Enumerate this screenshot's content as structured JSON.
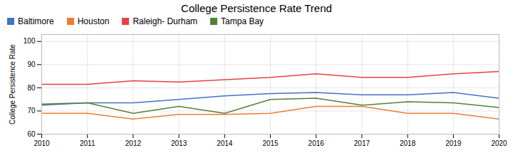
{
  "chart_data": {
    "type": "line",
    "title": "College Persistence Rate Trend",
    "ylabel": "College Persistence Rate",
    "x": [
      2010,
      2011,
      2012,
      2013,
      2014,
      2015,
      2016,
      2017,
      2018,
      2019,
      2020
    ],
    "series": [
      {
        "name": "Baltimore",
        "color": "#4472C4",
        "values": [
          72.5,
          73.5,
          73.5,
          75.0,
          76.5,
          77.5,
          78.0,
          77.0,
          77.0,
          78.0,
          75.5
        ]
      },
      {
        "name": "Houston",
        "color": "#ED7D31",
        "values": [
          69.0,
          69.0,
          66.5,
          68.5,
          68.5,
          69.0,
          72.0,
          72.0,
          69.0,
          69.0,
          66.5
        ]
      },
      {
        "name": "Raleigh- Durham",
        "color": "#E84040",
        "values": [
          81.5,
          81.5,
          83.0,
          82.5,
          83.5,
          84.5,
          86.0,
          84.5,
          84.5,
          86.0,
          87.0
        ]
      },
      {
        "name": "Tampa Bay",
        "color": "#548235",
        "values": [
          73.0,
          73.5,
          69.0,
          72.0,
          69.0,
          75.0,
          75.5,
          72.5,
          74.0,
          73.5,
          71.5
        ]
      }
    ],
    "xlim": [
      2010,
      2020
    ],
    "xticks": [
      2010,
      2011,
      2012,
      2013,
      2014,
      2015,
      2016,
      2017,
      2018,
      2019,
      2020
    ],
    "ylim": [
      60,
      103
    ],
    "yticks": [
      60,
      70,
      80,
      90,
      100
    ],
    "grid": true,
    "legend": "top"
  }
}
